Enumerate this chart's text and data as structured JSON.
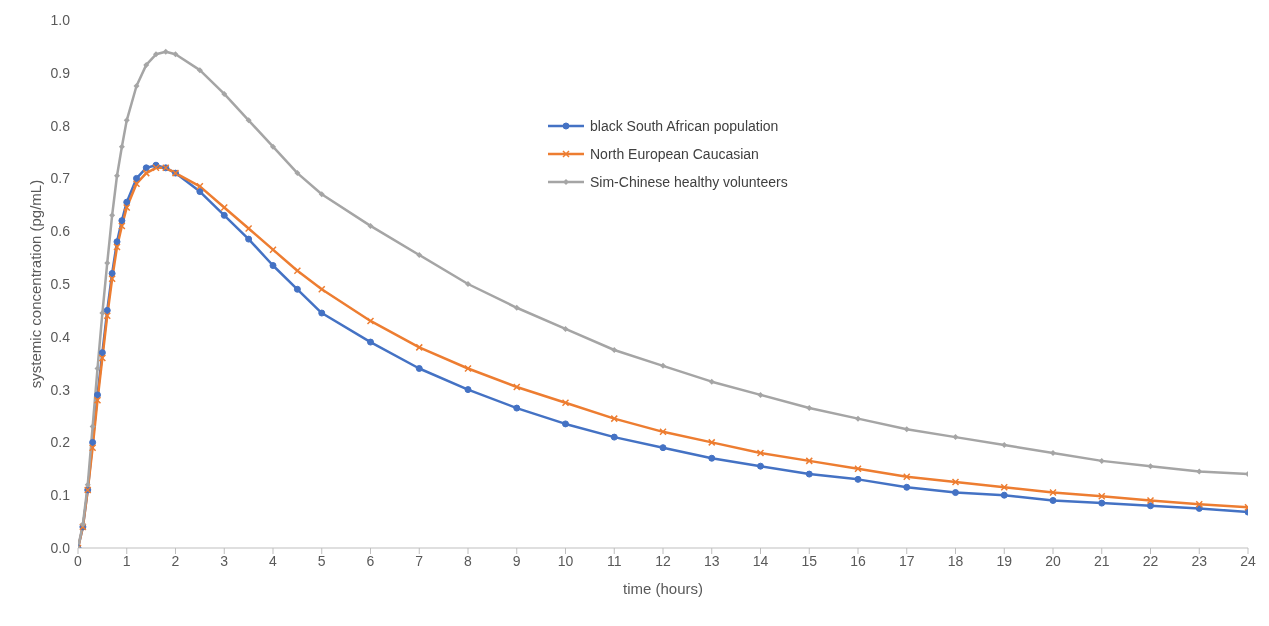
{
  "chart_data": {
    "type": "line",
    "xlabel": "time (hours)",
    "ylabel": "systemic concentration (pg/mL)",
    "x": [
      0,
      0.1,
      0.2,
      0.3,
      0.4,
      0.5,
      0.6,
      0.7,
      0.8,
      0.9,
      1,
      1.2,
      1.4,
      1.6,
      1.8,
      2,
      2.5,
      3,
      3.5,
      4,
      4.5,
      5,
      6,
      7,
      8,
      9,
      10,
      11,
      12,
      13,
      14,
      15,
      16,
      17,
      18,
      19,
      20,
      21,
      22,
      23,
      24
    ],
    "series": [
      {
        "name": "black South African population",
        "color": "#4472c4",
        "marker": "circle",
        "values": [
          0,
          0.04,
          0.11,
          0.2,
          0.29,
          0.37,
          0.45,
          0.52,
          0.58,
          0.62,
          0.655,
          0.7,
          0.72,
          0.725,
          0.72,
          0.71,
          0.675,
          0.63,
          0.585,
          0.535,
          0.49,
          0.445,
          0.39,
          0.34,
          0.3,
          0.265,
          0.235,
          0.21,
          0.19,
          0.17,
          0.155,
          0.14,
          0.13,
          0.115,
          0.105,
          0.1,
          0.09,
          0.085,
          0.08,
          0.075,
          0.068
        ]
      },
      {
        "name": "North European Caucasian",
        "color": "#ed7d31",
        "marker": "cross",
        "values": [
          0,
          0.04,
          0.11,
          0.19,
          0.28,
          0.36,
          0.44,
          0.51,
          0.57,
          0.61,
          0.645,
          0.69,
          0.71,
          0.72,
          0.72,
          0.71,
          0.685,
          0.645,
          0.605,
          0.565,
          0.525,
          0.49,
          0.43,
          0.38,
          0.34,
          0.305,
          0.275,
          0.245,
          0.22,
          0.2,
          0.18,
          0.165,
          0.15,
          0.135,
          0.125,
          0.115,
          0.105,
          0.098,
          0.09,
          0.083,
          0.077
        ]
      },
      {
        "name": "Sim-Chinese healthy volunteers",
        "color": "#a5a5a5",
        "marker": "diamond",
        "values": [
          0,
          0.045,
          0.12,
          0.23,
          0.34,
          0.445,
          0.54,
          0.63,
          0.705,
          0.76,
          0.81,
          0.875,
          0.915,
          0.935,
          0.94,
          0.935,
          0.905,
          0.86,
          0.81,
          0.76,
          0.71,
          0.67,
          0.61,
          0.555,
          0.5,
          0.455,
          0.415,
          0.375,
          0.345,
          0.315,
          0.29,
          0.265,
          0.245,
          0.225,
          0.21,
          0.195,
          0.18,
          0.165,
          0.155,
          0.145,
          0.14
        ]
      }
    ],
    "xlim": [
      0,
      24
    ],
    "xticks": [
      0,
      1,
      2,
      3,
      4,
      5,
      6,
      7,
      8,
      9,
      10,
      11,
      12,
      13,
      14,
      15,
      16,
      17,
      18,
      19,
      20,
      21,
      22,
      23,
      24
    ],
    "ylim": [
      0,
      1
    ],
    "yticks": [
      {
        "value": 0,
        "label": "0.0"
      },
      0.1,
      0.2,
      0.3,
      0.4,
      0.5,
      0.6,
      0.7,
      0.8,
      0.9,
      {
        "value": 1,
        "label": "1.0"
      }
    ],
    "grid": false,
    "legend": "top",
    "line_style": "solid"
  }
}
